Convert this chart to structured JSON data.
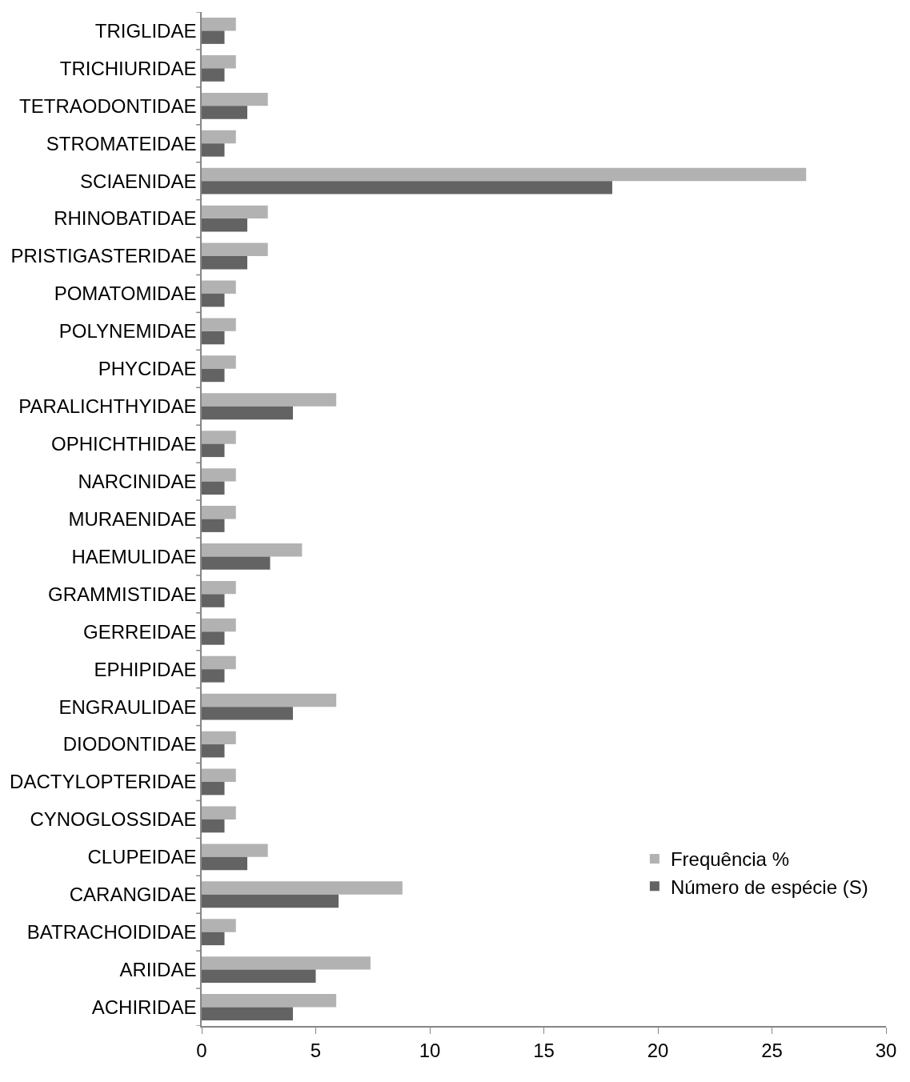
{
  "chart_data": {
    "type": "bar",
    "orientation": "horizontal",
    "categories": [
      "TRIGLIDAE",
      "TRICHIURIDAE",
      "TETRAODONTIDAE",
      "STROMATEIDAE",
      "SCIAENIDAE",
      "RHINOBATIDAE",
      "PRISTIGASTERIDAE",
      "POMATOMIDAE",
      "POLYNEMIDAE",
      "PHYCIDAE",
      "PARALICHTHYIDAE",
      "OPHICHTHIDAE",
      "NARCINIDAE",
      "MURAENIDAE",
      "HAEMULIDAE",
      "GRAMMISTIDAE",
      "GERREIDAE",
      "EPHIPIDAE",
      "ENGRAULIDAE",
      "DIODONTIDAE",
      "DACTYLOPTERIDAE",
      "CYNOGLOSSIDAE",
      "CLUPEIDAE",
      "CARANGIDAE",
      "BATRACHOIDIDAE",
      "ARIIDAE",
      "ACHIRIDAE"
    ],
    "series": [
      {
        "name": "Frequência %",
        "color": "#b2b2b2",
        "values": [
          1.5,
          1.5,
          2.9,
          1.5,
          26.5,
          2.9,
          2.9,
          1.5,
          1.5,
          1.5,
          5.9,
          1.5,
          1.5,
          1.5,
          4.4,
          1.5,
          1.5,
          1.5,
          5.9,
          1.5,
          1.5,
          1.5,
          2.9,
          8.8,
          1.5,
          7.4,
          5.9
        ]
      },
      {
        "name": "Número de espécie (S)",
        "color": "#636363",
        "values": [
          1,
          1,
          2,
          1,
          18,
          2,
          2,
          1,
          1,
          1,
          4,
          1,
          1,
          1,
          3,
          1,
          1,
          1,
          4,
          1,
          1,
          1,
          2,
          6,
          1,
          5,
          4
        ]
      }
    ],
    "xlim": [
      0,
      30
    ],
    "xticks": [
      0,
      5,
      10,
      15,
      20,
      25,
      30
    ],
    "legend": "bottom right"
  }
}
